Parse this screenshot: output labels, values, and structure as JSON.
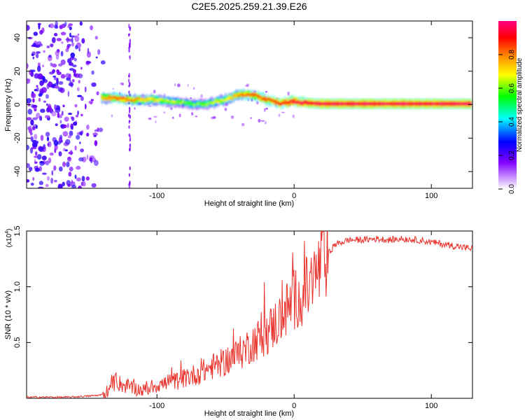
{
  "figure_title": "C2E5.2025.259.21.39.E26",
  "colors": {
    "axis": "#000000",
    "snr_line": "#e8322b",
    "background": "#ffffff"
  },
  "chart_data": [
    {
      "type": "heatmap",
      "title": "C2E5.2025.259.21.39.E26",
      "xlabel": "Height of straight line (km)",
      "ylabel": "Frequency (Hz)",
      "xlim": [
        -195,
        130
      ],
      "ylim": [
        -50,
        50
      ],
      "x_ticks": [
        -100,
        0,
        100
      ],
      "y_ticks": [
        -40,
        -20,
        0,
        20,
        40
      ],
      "colorbar": {
        "label": "Normalized spectral amplitude",
        "range": [
          0,
          1
        ],
        "ticks": [
          0.0,
          0.2,
          0.4,
          0.6,
          0.8
        ],
        "tick_labels": [
          "0.0",
          "0.2",
          "0.4",
          "0.6",
          "0.8"
        ],
        "colormap": [
          "#ffffff",
          "#8000ff",
          "#0000ff",
          "#00ffff",
          "#00ff00",
          "#ffff00",
          "#ff8000",
          "#ff0000",
          "#ff0080"
        ]
      },
      "noise_region": {
        "x_start": -195,
        "x_end": -138,
        "amplitude": 0.1
      },
      "vertical_streak": {
        "x": -120,
        "amplitude": 0.12
      },
      "ridge": [
        {
          "x": -140,
          "f": 4.0,
          "a": 0.75
        },
        {
          "x": -130,
          "f": 4.0,
          "a": 0.85
        },
        {
          "x": -120,
          "f": 3.0,
          "a": 0.8
        },
        {
          "x": -110,
          "f": 3.0,
          "a": 0.75
        },
        {
          "x": -100,
          "f": 3.0,
          "a": 0.7
        },
        {
          "x": -90,
          "f": 2.0,
          "a": 0.65
        },
        {
          "x": -80,
          "f": 1.0,
          "a": 0.6
        },
        {
          "x": -70,
          "f": 0.0,
          "a": 0.6
        },
        {
          "x": -60,
          "f": 1.0,
          "a": 0.65
        },
        {
          "x": -50,
          "f": 3.0,
          "a": 0.7
        },
        {
          "x": -40,
          "f": 6.0,
          "a": 0.8
        },
        {
          "x": -30,
          "f": 6.0,
          "a": 0.85
        },
        {
          "x": -20,
          "f": 3.0,
          "a": 0.85
        },
        {
          "x": -10,
          "f": 1.0,
          "a": 0.9
        },
        {
          "x": 0,
          "f": 2.0,
          "a": 0.95
        },
        {
          "x": 10,
          "f": 1.0,
          "a": 0.95
        },
        {
          "x": 20,
          "f": 0.5,
          "a": 0.97
        },
        {
          "x": 40,
          "f": 0.5,
          "a": 0.97
        },
        {
          "x": 60,
          "f": 0.5,
          "a": 0.97
        },
        {
          "x": 80,
          "f": 0.5,
          "a": 0.97
        },
        {
          "x": 100,
          "f": 0.5,
          "a": 0.97
        },
        {
          "x": 130,
          "f": 0.5,
          "a": 0.97
        }
      ]
    },
    {
      "type": "line",
      "xlabel": "Height of straight line (km)",
      "ylabel": "SNR (10 * v/v)",
      "scale_label": "(x10",
      "scale_exp": "4",
      "scale_suffix": ")",
      "xlim": [
        -195,
        130
      ],
      "ylim": [
        0,
        1.5
      ],
      "x_ticks": [
        -100,
        0,
        100
      ],
      "y_ticks": [
        0.5,
        1.0,
        1.5
      ],
      "y_tick_labels": [
        "0.5",
        "1.0",
        "1.5"
      ],
      "series": [
        {
          "name": "SNR",
          "x": [
            -195,
            -180,
            -165,
            -150,
            -140,
            -135,
            -130,
            -125,
            -120,
            -110,
            -100,
            -90,
            -80,
            -70,
            -60,
            -50,
            -40,
            -30,
            -20,
            -10,
            0,
            10,
            15,
            20,
            25,
            30,
            40,
            50,
            60,
            70,
            80,
            90,
            100,
            110,
            120,
            130
          ],
          "y": [
            0.01,
            0.01,
            0.01,
            0.02,
            0.03,
            0.08,
            0.15,
            0.12,
            0.1,
            0.07,
            0.12,
            0.14,
            0.18,
            0.22,
            0.28,
            0.33,
            0.4,
            0.5,
            0.58,
            0.72,
            0.88,
            0.98,
            1.08,
            1.2,
            1.3,
            1.38,
            1.42,
            1.42,
            1.43,
            1.42,
            1.43,
            1.42,
            1.4,
            1.38,
            1.36,
            1.34
          ]
        }
      ]
    }
  ]
}
